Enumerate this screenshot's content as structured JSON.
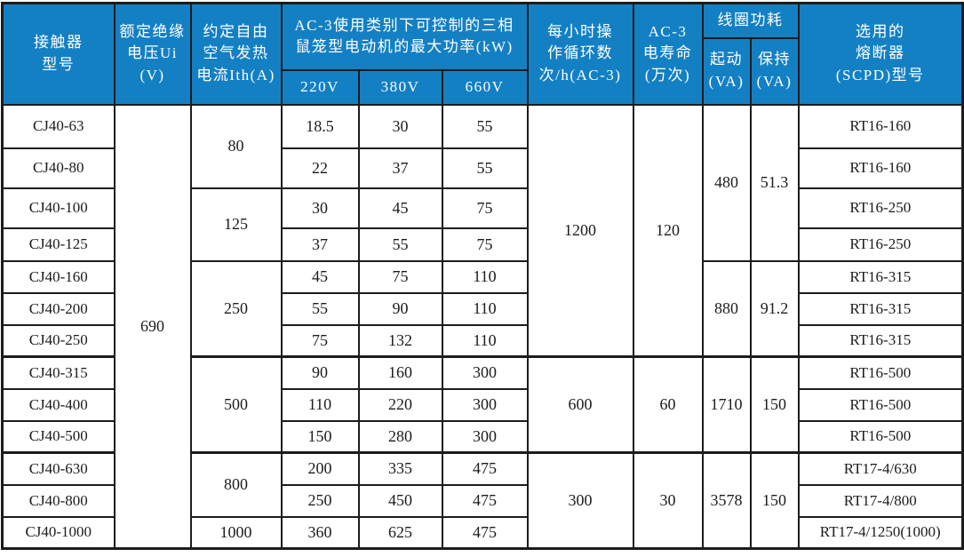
{
  "colors": {
    "header_bg": "#1480c4",
    "border": "#1c1c1c",
    "text": "#1c1c1c",
    "header_text": "#ffffff"
  },
  "table": {
    "headers": {
      "model": "接触器\n型号",
      "insulation_voltage": "额定绝缘\n电压Ui (V)",
      "thermal_current": "约定自由\n空气发热\n电流Ith(A)",
      "max_power": "AC-3使用类别下可控制的三相\n鼠笼型电动机的最大功率(kW)",
      "v220": "220V",
      "v380": "380V",
      "v660": "660V",
      "operating_cycles": "每小时操\n作循环数\n次/h(AC-3)",
      "electrical_life": "AC-3\n电寿命\n(万次)",
      "coil_power": "线圈功耗",
      "pickup": "起动\n(VA)",
      "holding": "保持\n(VA)",
      "fuse": "选用的\n熔断器\n(SCPD)型号"
    },
    "group_start_rows": [
      7,
      10
    ],
    "rows": [
      [
        {
          "t": "CJ40-63"
        },
        {
          "t": "690",
          "rs": 13
        },
        {
          "t": "80",
          "rs": 2
        },
        {
          "t": "18.5"
        },
        {
          "t": "30"
        },
        {
          "t": "55"
        },
        {
          "t": "1200",
          "rs": 7
        },
        {
          "t": "120",
          "rs": 7
        },
        {
          "t": "480",
          "rs": 4
        },
        {
          "t": "51.3",
          "rs": 4
        },
        {
          "t": "RT16-160"
        }
      ],
      [
        {
          "t": "CJ40-80"
        },
        {
          "t": "22"
        },
        {
          "t": "37"
        },
        {
          "t": "55"
        },
        {
          "t": "RT16-160"
        }
      ],
      [
        {
          "t": "CJ40-100"
        },
        {
          "t": "125",
          "rs": 2
        },
        {
          "t": "30"
        },
        {
          "t": "45"
        },
        {
          "t": "75"
        },
        {
          "t": "RT16-250"
        }
      ],
      [
        {
          "t": "CJ40-125"
        },
        {
          "t": "37"
        },
        {
          "t": "55"
        },
        {
          "t": "75"
        },
        {
          "t": "RT16-250"
        }
      ],
      [
        {
          "t": "CJ40-160"
        },
        {
          "t": "250",
          "rs": 3
        },
        {
          "t": "45"
        },
        {
          "t": "75"
        },
        {
          "t": "110"
        },
        {
          "t": "880",
          "rs": 3
        },
        {
          "t": "91.2",
          "rs": 3
        },
        {
          "t": "RT16-315"
        }
      ],
      [
        {
          "t": "CJ40-200"
        },
        {
          "t": "55"
        },
        {
          "t": "90"
        },
        {
          "t": "110"
        },
        {
          "t": "RT16-315"
        }
      ],
      [
        {
          "t": "CJ40-250"
        },
        {
          "t": "75"
        },
        {
          "t": "132"
        },
        {
          "t": "110"
        },
        {
          "t": "RT16-315"
        }
      ],
      [
        {
          "t": "CJ40-315"
        },
        {
          "t": "500",
          "rs": 3
        },
        {
          "t": "90"
        },
        {
          "t": "160"
        },
        {
          "t": "300"
        },
        {
          "t": "600",
          "rs": 3
        },
        {
          "t": "60",
          "rs": 3
        },
        {
          "t": "1710",
          "rs": 3
        },
        {
          "t": "150",
          "rs": 3
        },
        {
          "t": "RT16-500"
        }
      ],
      [
        {
          "t": "CJ40-400"
        },
        {
          "t": "110"
        },
        {
          "t": "220"
        },
        {
          "t": "300"
        },
        {
          "t": "RT16-500"
        }
      ],
      [
        {
          "t": "CJ40-500"
        },
        {
          "t": "150"
        },
        {
          "t": "280"
        },
        {
          "t": "300"
        },
        {
          "t": "RT16-500"
        }
      ],
      [
        {
          "t": "CJ40-630"
        },
        {
          "t": "800",
          "rs": 2
        },
        {
          "t": "200"
        },
        {
          "t": "335"
        },
        {
          "t": "475"
        },
        {
          "t": "300",
          "rs": 3
        },
        {
          "t": "30",
          "rs": 3
        },
        {
          "t": "3578",
          "rs": 3
        },
        {
          "t": "150",
          "rs": 3
        },
        {
          "t": "RT17-4/630"
        }
      ],
      [
        {
          "t": "CJ40-800"
        },
        {
          "t": "250"
        },
        {
          "t": "450"
        },
        {
          "t": "475"
        },
        {
          "t": "RT17-4/800"
        }
      ],
      [
        {
          "t": "CJ40-1000"
        },
        {
          "t": "1000"
        },
        {
          "t": "360"
        },
        {
          "t": "625"
        },
        {
          "t": "475"
        },
        {
          "t": "RT17-4/1250(1000)"
        }
      ]
    ]
  }
}
